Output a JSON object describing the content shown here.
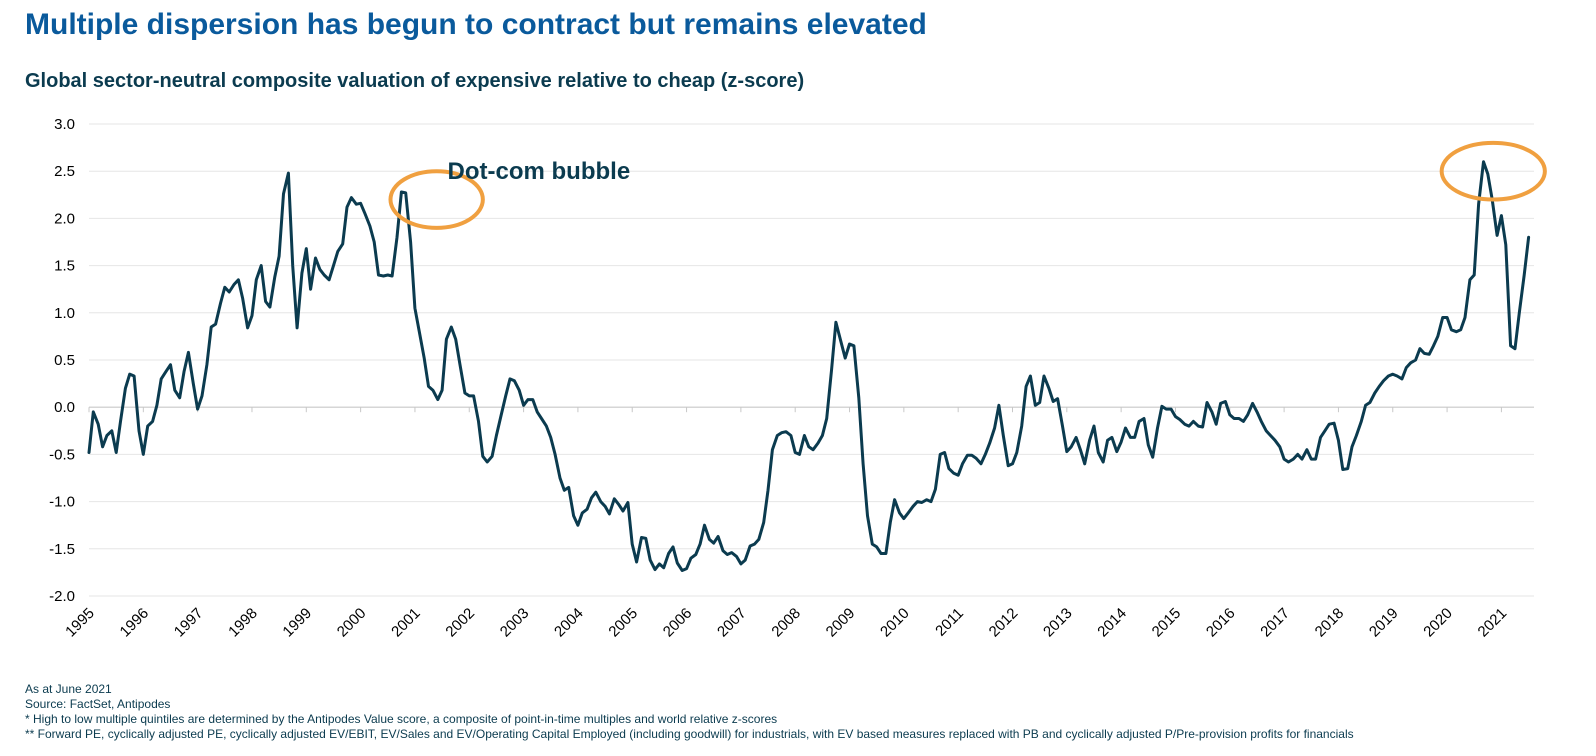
{
  "title": "Multiple dispersion has begun to contract but remains elevated",
  "subtitle": "Global sector-neutral composite valuation of expensive relative to cheap (z-score)",
  "notes": [
    "As at June 2021",
    "Source: FactSet, Antipodes",
    "* High to low multiple quintiles are determined by the Antipodes Value score, a composite of point-in-time multiples and world relative z-scores",
    "** Forward PE, cyclically adjusted PE, cyclically adjusted EV/EBIT, EV/Sales and EV/Operating Capital Employed (including goodwill) for industrials, with EV based measures replaced with PB and cyclically adjusted P/Pre-provision profits for financials"
  ],
  "colors": {
    "line": "#0b3b4f",
    "highlight": "#f0a040",
    "title": "#0a5a9c",
    "grid": "#e6e6e6"
  },
  "chart_data": {
    "type": "line",
    "title": "Global sector-neutral composite valuation of expensive relative to cheap (z-score)",
    "xlabel": "",
    "ylabel": "",
    "xlim": [
      1995,
      2021.6
    ],
    "ylim": [
      -2.0,
      3.0
    ],
    "y_ticks": [
      "3.0",
      "2.5",
      "2.0",
      "1.5",
      "1.0",
      "0.5",
      "0.0",
      "-0.5",
      "-1.0",
      "-1.5",
      "-2.0"
    ],
    "x_ticks": [
      "1995",
      "1996",
      "1997",
      "1998",
      "1999",
      "2000",
      "2001",
      "2002",
      "2003",
      "2004",
      "2005",
      "2006",
      "2007",
      "2008",
      "2009",
      "2010",
      "2011",
      "2012",
      "2013",
      "2014",
      "2015",
      "2016",
      "2017",
      "2018",
      "2019",
      "2020",
      "2021"
    ],
    "grid": "horizontal",
    "annotations": [
      {
        "text": "Dot-com bubble",
        "x": 2001.6,
        "y": 2.5
      }
    ],
    "highlights": [
      {
        "shape": "ellipse",
        "cx": 2001.4,
        "cy": 2.2,
        "rx": 0.85,
        "ry": 0.3
      },
      {
        "shape": "ellipse",
        "cx": 2020.85,
        "cy": 2.5,
        "rx": 0.95,
        "ry": 0.3
      }
    ],
    "series": [
      {
        "x": [
          1995.0,
          1995.08,
          1995.17,
          1995.25,
          1995.33,
          1995.42,
          1995.5,
          1995.58,
          1995.67,
          1995.75,
          1995.83,
          1995.92,
          1996.0,
          1996.08,
          1996.17,
          1996.25,
          1996.33,
          1996.42,
          1996.5,
          1996.58,
          1996.67,
          1996.75,
          1996.83,
          1996.92,
          1997.0,
          1997.08,
          1997.17,
          1997.25,
          1997.33,
          1997.42,
          1997.5,
          1997.58,
          1997.67,
          1997.75,
          1997.83,
          1997.92,
          1998.0,
          1998.08,
          1998.17,
          1998.25,
          1998.33,
          1998.42,
          1998.5,
          1998.58,
          1998.67,
          1998.75,
          1998.83,
          1998.92,
          1999.0,
          1999.08,
          1999.17,
          1999.25,
          1999.33,
          1999.42,
          1999.5,
          1999.58,
          1999.67,
          1999.75,
          1999.83,
          1999.92,
          2000.0,
          2000.08,
          2000.17,
          2000.25,
          2000.33,
          2000.42,
          2000.5,
          2000.58,
          2000.67,
          2000.75,
          2000.83,
          2000.92,
          2001.0,
          2001.08,
          2001.17,
          2001.25,
          2001.33,
          2001.42,
          2001.5,
          2001.58,
          2001.67,
          2001.75,
          2001.83,
          2001.92,
          2002.0,
          2002.08,
          2002.17,
          2002.25,
          2002.33,
          2002.42,
          2002.5,
          2002.58,
          2002.67,
          2002.75,
          2002.83,
          2002.92,
          2003.0,
          2003.08,
          2003.17,
          2003.25,
          2003.33,
          2003.42,
          2003.5,
          2003.58,
          2003.67,
          2003.75,
          2003.83,
          2003.92,
          2004.0,
          2004.08,
          2004.17,
          2004.25,
          2004.33,
          2004.42,
          2004.5,
          2004.58,
          2004.67,
          2004.75,
          2004.83,
          2004.92,
          2005.0,
          2005.08,
          2005.17,
          2005.25,
          2005.33,
          2005.42,
          2005.5,
          2005.58,
          2005.67,
          2005.75,
          2005.83,
          2005.92,
          2006.0,
          2006.08,
          2006.17,
          2006.25,
          2006.33,
          2006.42,
          2006.5,
          2006.58,
          2006.67,
          2006.75,
          2006.83,
          2006.92,
          2007.0,
          2007.08,
          2007.17,
          2007.25,
          2007.33,
          2007.42,
          2007.5,
          2007.58,
          2007.67,
          2007.75,
          2007.83,
          2007.92,
          2008.0,
          2008.08,
          2008.17,
          2008.25,
          2008.33,
          2008.42,
          2008.5,
          2008.58,
          2008.67,
          2008.75,
          2008.83,
          2008.92,
          2009.0,
          2009.08,
          2009.17,
          2009.25,
          2009.33,
          2009.42,
          2009.5,
          2009.58,
          2009.67,
          2009.75,
          2009.83,
          2009.92,
          2010.0,
          2010.08,
          2010.17,
          2010.25,
          2010.33,
          2010.42,
          2010.5,
          2010.58,
          2010.67,
          2010.75,
          2010.83,
          2010.92,
          2011.0,
          2011.08,
          2011.17,
          2011.25,
          2011.33,
          2011.42,
          2011.5,
          2011.58,
          2011.67,
          2011.75,
          2011.83,
          2011.92,
          2012.0,
          2012.08,
          2012.17,
          2012.25,
          2012.33,
          2012.42,
          2012.5,
          2012.58,
          2012.67,
          2012.75,
          2012.83,
          2012.92,
          2013.0,
          2013.08,
          2013.17,
          2013.25,
          2013.33,
          2013.42,
          2013.5,
          2013.58,
          2013.67,
          2013.75,
          2013.83,
          2013.92,
          2014.0,
          2014.08,
          2014.17,
          2014.25,
          2014.33,
          2014.42,
          2014.5,
          2014.58,
          2014.67,
          2014.75,
          2014.83,
          2014.92,
          2015.0,
          2015.08,
          2015.17,
          2015.25,
          2015.33,
          2015.42,
          2015.5,
          2015.58,
          2015.67,
          2015.75,
          2015.83,
          2015.92,
          2016.0,
          2016.08,
          2016.17,
          2016.25,
          2016.33,
          2016.42,
          2016.5,
          2016.58,
          2016.67,
          2016.75,
          2016.83,
          2016.92,
          2017.0,
          2017.08,
          2017.17,
          2017.25,
          2017.33,
          2017.42,
          2017.5,
          2017.58,
          2017.67,
          2017.75,
          2017.83,
          2017.92,
          2018.0,
          2018.08,
          2018.17,
          2018.25,
          2018.33,
          2018.42,
          2018.5,
          2018.58,
          2018.67,
          2018.75,
          2018.83,
          2018.92,
          2019.0,
          2019.08,
          2019.17,
          2019.25,
          2019.33,
          2019.42,
          2019.5,
          2019.58,
          2019.67,
          2019.75,
          2019.83,
          2019.92,
          2020.0,
          2020.08,
          2020.17,
          2020.25,
          2020.33,
          2020.42,
          2020.5,
          2020.58,
          2020.67,
          2020.75,
          2020.83,
          2020.92,
          2021.0,
          2021.08,
          2021.17,
          2021.25,
          2021.33,
          2021.42,
          2021.5
        ],
        "values": [
          -0.48,
          -0.05,
          -0.18,
          -0.42,
          -0.3,
          -0.25,
          -0.48,
          -0.15,
          0.2,
          0.35,
          0.33,
          -0.25,
          -0.5,
          -0.2,
          -0.15,
          0.02,
          0.3,
          0.38,
          0.45,
          0.18,
          0.1,
          0.38,
          0.58,
          0.25,
          -0.02,
          0.12,
          0.45,
          0.85,
          0.88,
          1.1,
          1.27,
          1.22,
          1.3,
          1.35,
          1.15,
          0.84,
          0.97,
          1.35,
          1.5,
          1.12,
          1.06,
          1.38,
          1.6,
          2.26,
          2.48,
          1.5,
          0.84,
          1.42,
          1.68,
          1.25,
          1.58,
          1.46,
          1.4,
          1.35,
          1.5,
          1.65,
          1.73,
          2.12,
          2.22,
          2.15,
          2.16,
          2.05,
          1.92,
          1.75,
          1.4,
          1.39,
          1.4,
          1.39,
          1.8,
          2.28,
          2.27,
          1.75,
          1.05,
          0.8,
          0.52,
          0.22,
          0.18,
          0.08,
          0.18,
          0.72,
          0.85,
          0.72,
          0.45,
          0.15,
          0.12,
          0.12,
          -0.15,
          -0.52,
          -0.58,
          -0.52,
          -0.3,
          -0.1,
          0.12,
          0.3,
          0.28,
          0.18,
          0.02,
          0.08,
          0.08,
          -0.05,
          -0.12,
          -0.2,
          -0.32,
          -0.5,
          -0.75,
          -0.88,
          -0.85,
          -1.15,
          -1.25,
          -1.12,
          -1.08,
          -0.96,
          -0.9,
          -1.0,
          -1.05,
          -1.13,
          -0.97,
          -1.03,
          -1.1,
          -1.01,
          -1.45,
          -1.64,
          -1.38,
          -1.39,
          -1.62,
          -1.72,
          -1.66,
          -1.7,
          -1.55,
          -1.48,
          -1.65,
          -1.73,
          -1.71,
          -1.6,
          -1.56,
          -1.45,
          -1.25,
          -1.4,
          -1.44,
          -1.37,
          -1.52,
          -1.56,
          -1.54,
          -1.58,
          -1.66,
          -1.62,
          -1.47,
          -1.45,
          -1.4,
          -1.22,
          -0.88,
          -0.45,
          -0.3,
          -0.27,
          -0.26,
          -0.3,
          -0.48,
          -0.5,
          -0.3,
          -0.42,
          -0.45,
          -0.38,
          -0.3,
          -0.12,
          0.4,
          0.9,
          0.72,
          0.52,
          0.67,
          0.65,
          0.1,
          -0.6,
          -1.15,
          -1.45,
          -1.48,
          -1.55,
          -1.55,
          -1.22,
          -0.98,
          -1.12,
          -1.18,
          -1.12,
          -1.05,
          -1.0,
          -1.01,
          -0.98,
          -1.0,
          -0.87,
          -0.5,
          -0.48,
          -0.65,
          -0.7,
          -0.72,
          -0.6,
          -0.51,
          -0.51,
          -0.54,
          -0.6,
          -0.5,
          -0.38,
          -0.22,
          0.02,
          -0.3,
          -0.62,
          -0.6,
          -0.48,
          -0.2,
          0.22,
          0.33,
          0.02,
          0.05,
          0.33,
          0.2,
          0.06,
          0.09,
          -0.2,
          -0.47,
          -0.42,
          -0.32,
          -0.45,
          -0.6,
          -0.35,
          -0.2,
          -0.48,
          -0.58,
          -0.35,
          -0.32,
          -0.47,
          -0.37,
          -0.22,
          -0.32,
          -0.32,
          -0.15,
          -0.12,
          -0.4,
          -0.53,
          -0.22,
          0.01,
          -0.02,
          -0.02,
          -0.1,
          -0.13,
          -0.18,
          -0.2,
          -0.15,
          -0.2,
          -0.21,
          0.05,
          -0.05,
          -0.18,
          0.04,
          0.06,
          -0.08,
          -0.12,
          -0.12,
          -0.15,
          -0.08,
          0.04,
          -0.05,
          -0.15,
          -0.25,
          -0.3,
          -0.35,
          -0.42,
          -0.55,
          -0.58,
          -0.55,
          -0.5,
          -0.55,
          -0.45,
          -0.55,
          -0.55,
          -0.32,
          -0.25,
          -0.18,
          -0.17,
          -0.35,
          -0.66,
          -0.65,
          -0.42,
          -0.3,
          -0.15,
          0.02,
          0.05,
          0.15,
          0.22,
          0.28,
          0.33,
          0.35,
          0.33,
          0.3,
          0.42,
          0.47,
          0.5,
          0.62,
          0.57,
          0.56,
          0.65,
          0.75,
          0.95,
          0.95,
          0.82,
          0.8,
          0.82,
          0.95,
          1.35,
          1.4,
          2.15,
          2.6,
          2.47,
          2.2,
          1.82,
          2.03,
          1.72,
          0.65,
          0.62,
          1.0,
          1.4,
          1.8
        ]
      }
    ]
  }
}
